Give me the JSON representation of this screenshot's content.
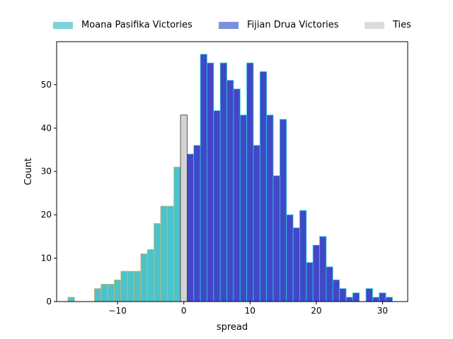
{
  "chart_data": {
    "type": "bar",
    "xlabel": "spread",
    "ylabel": "Count",
    "xlim": [
      -19.2,
      33.8
    ],
    "ylim": [
      0,
      59.9
    ],
    "bin_width": 1,
    "x_ticks": [
      -10,
      0,
      10,
      20,
      30
    ],
    "x_tick_labels": [
      "−10",
      "0",
      "10",
      "20",
      "30"
    ],
    "y_ticks": [
      0,
      10,
      20,
      30,
      40,
      50
    ],
    "y_tick_labels": [
      "0",
      "10",
      "20",
      "30",
      "40",
      "50"
    ],
    "grid": false,
    "legend_position": "top",
    "series": [
      {
        "name": "Moana Pasifika Victories",
        "fill": "#4ac3cb",
        "edge": "#d6b26e",
        "bins": [
          {
            "x": -17,
            "count": 1
          },
          {
            "x": -13,
            "count": 3
          },
          {
            "x": -12,
            "count": 4
          },
          {
            "x": -11,
            "count": 4
          },
          {
            "x": -10,
            "count": 5
          },
          {
            "x": -9,
            "count": 7
          },
          {
            "x": -8,
            "count": 7
          },
          {
            "x": -7,
            "count": 7
          },
          {
            "x": -6,
            "count": 11
          },
          {
            "x": -5,
            "count": 12
          },
          {
            "x": -4,
            "count": 18
          },
          {
            "x": -3,
            "count": 22
          },
          {
            "x": -2,
            "count": 22
          },
          {
            "x": -1,
            "count": 31
          }
        ]
      },
      {
        "name": "Fijian Drua Victories",
        "fill": "#4048c8",
        "edge": "#28d0d8",
        "bins": [
          {
            "x": 1,
            "count": 34
          },
          {
            "x": 2,
            "count": 36
          },
          {
            "x": 3,
            "count": 57
          },
          {
            "x": 4,
            "count": 55
          },
          {
            "x": 5,
            "count": 44
          },
          {
            "x": 6,
            "count": 55
          },
          {
            "x": 7,
            "count": 51
          },
          {
            "x": 8,
            "count": 49
          },
          {
            "x": 9,
            "count": 43
          },
          {
            "x": 10,
            "count": 55
          },
          {
            "x": 11,
            "count": 36
          },
          {
            "x": 12,
            "count": 53
          },
          {
            "x": 13,
            "count": 43
          },
          {
            "x": 14,
            "count": 29
          },
          {
            "x": 15,
            "count": 42
          },
          {
            "x": 16,
            "count": 20
          },
          {
            "x": 17,
            "count": 17
          },
          {
            "x": 18,
            "count": 21
          },
          {
            "x": 19,
            "count": 9
          },
          {
            "x": 20,
            "count": 13
          },
          {
            "x": 21,
            "count": 15
          },
          {
            "x": 22,
            "count": 8
          },
          {
            "x": 23,
            "count": 5
          },
          {
            "x": 24,
            "count": 3
          },
          {
            "x": 25,
            "count": 1
          },
          {
            "x": 26,
            "count": 2
          },
          {
            "x": 28,
            "count": 3
          },
          {
            "x": 29,
            "count": 1
          },
          {
            "x": 30,
            "count": 2
          },
          {
            "x": 31,
            "count": 1
          }
        ]
      },
      {
        "name": "Ties",
        "fill": "#d3d3d3",
        "edge": "#333333",
        "bins": [
          {
            "x": 0,
            "count": 43
          }
        ]
      }
    ]
  }
}
